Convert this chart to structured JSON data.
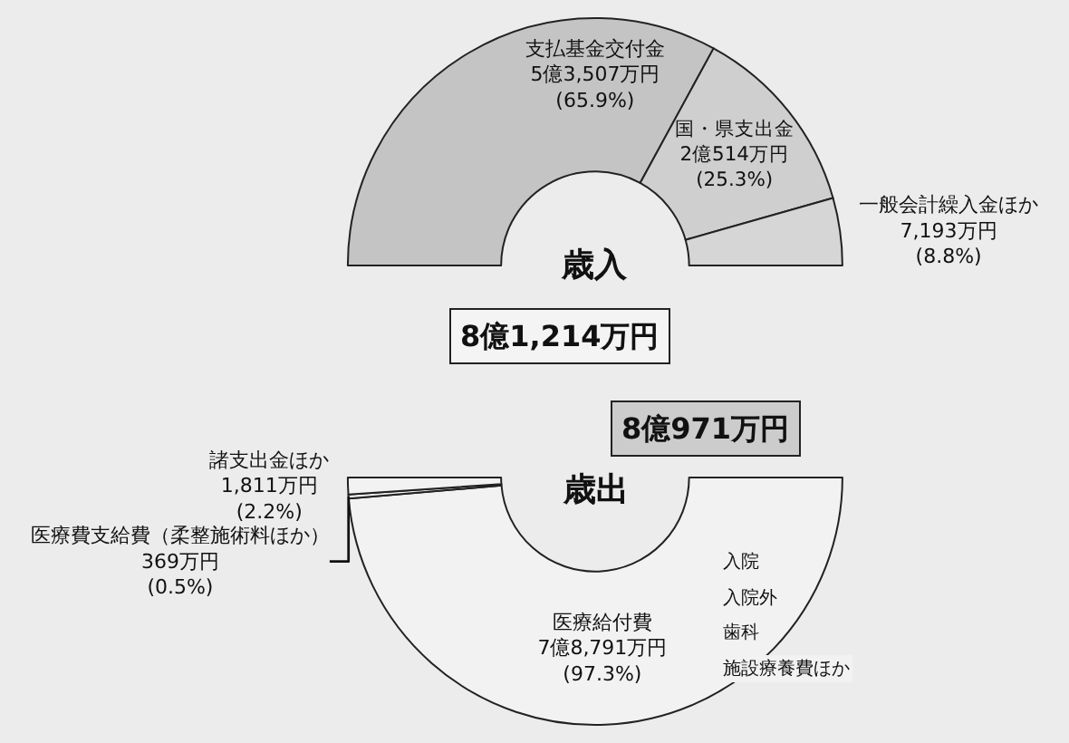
{
  "chart_data": [
    {
      "type": "donut",
      "title": "歳入",
      "categories": [
        "支払基金交付金\n5億3,507万円",
        "国・県支出金\n2億514万円",
        "一般会計繰入金ほか\n7,193万円"
      ],
      "values": [
        65.9,
        25.3,
        8.8
      ],
      "colors": [
        "#c4c4c4",
        "#cfcfcf",
        "#d6d6d6"
      ],
      "value_labels": [
        "(65.9%)",
        "(25.3%)",
        "(8.8%)"
      ],
      "annotations": [
        "8億1,214万円"
      ]
    },
    {
      "type": "donut",
      "title": "歳出",
      "categories": [
        "医療給付費\n7億8,791万円",
        "医療費支給費（柔整施術料ほか）\n369万円",
        "諸支出金ほか\n1,811万円"
      ],
      "values": [
        97.3,
        0.5,
        2.2
      ],
      "colors": [
        "#f2f2f2",
        "#f2f2f2",
        "#f2f2f2"
      ],
      "value_labels": [
        "(97.3%)",
        "(0.5%)",
        "(2.2%)"
      ],
      "annotations": [
        "8億971万円",
        "入院",
        "入院外",
        "歯科",
        "施設療養費ほか"
      ]
    }
  ]
}
